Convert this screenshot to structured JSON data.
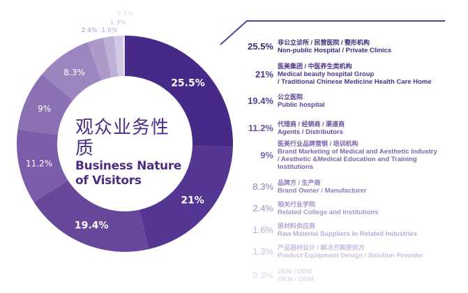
{
  "title": {
    "zh": "观众业务性质",
    "en_line1": "Business Nature",
    "en_line2": "of Visitors"
  },
  "chart_data": {
    "type": "pie",
    "variant": "donut",
    "title": "观众业务性质 Business Nature of Visitors",
    "start_angle": "12 o'clock, clockwise",
    "categories": [
      "非公立诊所 / 民营医院 / 整形机构 Non-public Hospital / Private Clinics",
      "医美集团 / 中医养生类机构 Medical beauty hospital Group / Traditional Chinese Medicine Health Care Home",
      "公立医院 Public hospital",
      "代理商 / 经销商 / 渠道商 Agents / Distributors",
      "医美行业品牌营销 / 培训机构 Brand Marketing of Medical and Aesthetic Industry / Aesthetic &Medical Education and Training Institutions",
      "品牌方 / 生产商 Brand Owner / Manufacturer",
      "相关行业学院 Related College and Institutions",
      "原材料供应商 Raw Material Suppliers in Related Industries",
      "产品器材设计 / 解决方案提供方 Product Equipment Design / Solution Provider",
      "OEM / ODM"
    ],
    "values": [
      25.5,
      21,
      19.4,
      11.2,
      9,
      8.3,
      2.4,
      1.6,
      1.3,
      0.3
    ],
    "labels": [
      "25.5%",
      "21%",
      "19.4%",
      "11.2%",
      "9%",
      "8.3%",
      "2.4%",
      "1.6%",
      "1.3%",
      "0.3%"
    ],
    "colors": [
      "#472a87",
      "#543592",
      "#66479a",
      "#7a5ca8",
      "#8b71b4",
      "#9d86c0",
      "#ad9ac9",
      "#beb0d6",
      "#d3c9e4",
      "#e6e1ef"
    ],
    "legend_position": "right"
  },
  "legend": [
    {
      "pct": "25.5%",
      "zh": "非公立诊所 / 民营医院 / 整形机构",
      "en": [
        "Non-public Hospital / Private Clinics"
      ],
      "color": "#3e2a78"
    },
    {
      "pct": "21%",
      "zh": "医美集团 / 中医养生类机构",
      "en": [
        "Medical beauty hospital Group",
        "/ Traditional Chinese Medicine Health Care Home"
      ],
      "color": "#4e3589"
    },
    {
      "pct": "19.4%",
      "zh": "公立医院",
      "en": [
        "Public hospital"
      ],
      "color": "#5a3f92"
    },
    {
      "pct": "11.2%",
      "zh": "代理商 / 经销商 / 渠道商",
      "en": [
        "Agents / Distributors"
      ],
      "color": "#6a519e"
    },
    {
      "pct": "9%",
      "zh": "医美行业品牌营销 / 培训机构",
      "en": [
        "Brand Marketing of Medical and Aesthetic Industry",
        "/ Aesthetic &Medical Education and Training",
        "Institutions"
      ],
      "color": "#7e67ad"
    },
    {
      "pct": "8.3%",
      "zh": "品牌方 / 生产商",
      "en": [
        "Brand Owner / Manufacturer"
      ],
      "color": "#8f7bb9"
    },
    {
      "pct": "2.4%",
      "zh": "相关行业学院",
      "en": [
        "Related College and Institutions"
      ],
      "color": "#a594c7"
    },
    {
      "pct": "1.6%",
      "zh": "原材料供应商",
      "en": [
        "Raw Material Suppliers in Related Industries"
      ],
      "color": "#b9abd5"
    },
    {
      "pct": "1.3%",
      "zh": "产品器材设计 / 解决方案提供方",
      "en": [
        "Product Equipment Design / Solution Provider"
      ],
      "color": "#cbc0e0"
    },
    {
      "pct": "0.3%",
      "zh": "OEM / ODM",
      "en": [
        "OEM / ODM"
      ],
      "color": "#dfd8ec"
    }
  ]
}
